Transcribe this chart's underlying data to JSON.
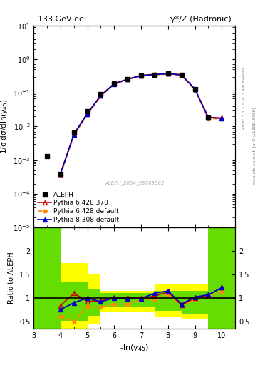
{
  "title_left": "133 GeV ee",
  "title_right": "γ*/Z (Hadronic)",
  "ylabel_main": "1/σ dσ/dln(y$_{45}$)",
  "ylabel_ratio": "Ratio to ALEPH",
  "xlabel": "-ln(y$_{45}$)",
  "right_label_top": "Rivet 3.1.10, ≥ 3.4M events",
  "right_label_bot": "mcplots.cern.ch [arXiv:1306.3436]",
  "watermark": "ALEPH_2004_S5765862",
  "ref_label": "ALEPH",
  "x_aleph": [
    3.5,
    4.0,
    4.5,
    5.0,
    5.5,
    6.0,
    6.5,
    7.0,
    7.5,
    8.0,
    8.5,
    9.0,
    9.5
  ],
  "y_aleph": [
    0.0013,
    0.0004,
    0.0065,
    0.028,
    0.09,
    0.19,
    0.26,
    0.33,
    0.35,
    0.37,
    0.34,
    0.13,
    0.018
  ],
  "x_py6_370": [
    4.0,
    4.5,
    5.0,
    5.5,
    6.0,
    6.5,
    7.0,
    7.5,
    8.0,
    8.5,
    9.0,
    9.5,
    10.0
  ],
  "y_py6_370": [
    0.0004,
    0.006,
    0.025,
    0.085,
    0.19,
    0.26,
    0.33,
    0.36,
    0.375,
    0.35,
    0.13,
    0.019,
    0.018
  ],
  "x_py6_def": [
    4.0,
    4.5,
    5.0,
    5.5,
    6.0,
    6.5,
    7.0,
    7.5,
    8.0,
    8.5,
    9.0,
    9.5,
    10.0
  ],
  "y_py6_def": [
    0.00035,
    0.0055,
    0.022,
    0.08,
    0.18,
    0.25,
    0.32,
    0.34,
    0.36,
    0.33,
    0.12,
    0.017,
    0.017
  ],
  "x_py8_def": [
    4.0,
    4.5,
    5.0,
    5.5,
    6.0,
    6.5,
    7.0,
    7.5,
    8.0,
    8.5,
    9.0,
    9.5,
    10.0
  ],
  "y_py8_def": [
    0.0004,
    0.0058,
    0.024,
    0.083,
    0.185,
    0.255,
    0.325,
    0.35,
    0.37,
    0.34,
    0.13,
    0.0185,
    0.0175
  ],
  "ratio_x": [
    4.0,
    4.5,
    5.0,
    5.5,
    6.0,
    6.5,
    7.0,
    7.5,
    8.0,
    8.5,
    9.0,
    9.5,
    10.0
  ],
  "ratio_py6_370": [
    0.84,
    1.1,
    0.93,
    0.94,
    1.01,
    1.01,
    1.0,
    1.04,
    1.13,
    0.85,
    1.0,
    1.06,
    1.22
  ],
  "ratio_py6_def": [
    0.6,
    0.5,
    0.82,
    0.8,
    0.87,
    0.87,
    0.97,
    0.97,
    1.08,
    0.83,
    0.97,
    1.02,
    1.12
  ],
  "ratio_py8_def": [
    0.75,
    0.9,
    1.0,
    0.92,
    1.0,
    0.98,
    0.99,
    1.1,
    1.15,
    0.87,
    1.02,
    1.07,
    1.22
  ],
  "band_x_edges": [
    3.0,
    4.0,
    5.0,
    5.5,
    7.5,
    8.5,
    9.5,
    10.5
  ],
  "band_yellow_high": [
    2.5,
    1.75,
    1.5,
    1.15,
    1.3,
    1.3,
    2.5
  ],
  "band_yellow_low": [
    0.35,
    0.35,
    0.45,
    0.7,
    0.6,
    0.55,
    0.35
  ],
  "band_green_high": [
    2.5,
    1.35,
    1.2,
    1.1,
    1.15,
    1.15,
    2.5
  ],
  "band_green_low": [
    0.35,
    0.52,
    0.62,
    0.82,
    0.72,
    0.65,
    0.35
  ],
  "color_py6_370": "#cc0000",
  "color_py6_def": "#ff8800",
  "color_py8_def": "#0000cc",
  "color_aleph": "#000000",
  "xlim": [
    3.0,
    10.5
  ],
  "ylim_main": [
    1e-05,
    10
  ],
  "ylim_ratio": [
    0.35,
    2.5
  ]
}
